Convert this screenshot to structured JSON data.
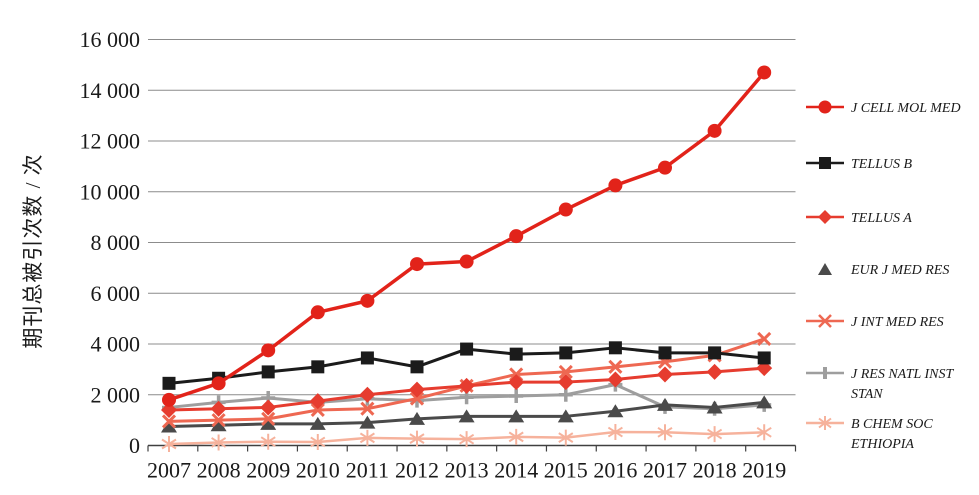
{
  "chart_data": {
    "type": "line",
    "title": "",
    "xlabel": "",
    "ylabel": "期刊总被引次数 / 次",
    "x": [
      "2007",
      "2008",
      "2009",
      "2010",
      "2011",
      "2012",
      "2013",
      "2014",
      "2015",
      "2016",
      "2017",
      "2018",
      "2019"
    ],
    "ylim": [
      0,
      16000
    ],
    "ytick_step": 2000,
    "ytick_labels": [
      "0",
      "2 000",
      "4 000",
      "6 000",
      "8 000",
      "10 000",
      "12 000",
      "14 000",
      "16 000"
    ],
    "grid": true,
    "legend_position": "right",
    "axis_color": "#404040",
    "grid_color": "#8c8c8c",
    "series": [
      {
        "name": "J CELL MOL MED",
        "marker": "circle",
        "color": "#e2231a",
        "line_width": 3.5,
        "values": [
          1800,
          2450,
          3750,
          5250,
          5700,
          7150,
          7250,
          8250,
          9300,
          10250,
          10950,
          12400,
          14700
        ]
      },
      {
        "name": "TELLUS B",
        "marker": "square",
        "color": "#1b1b1b",
        "line_width": 3,
        "values": [
          2450,
          2650,
          2900,
          3100,
          3450,
          3100,
          3800,
          3600,
          3650,
          3850,
          3650,
          3650,
          3450
        ]
      },
      {
        "name": "TELLUS A",
        "marker": "diamond",
        "color": "#e63c2f",
        "line_width": 3,
        "values": [
          1400,
          1450,
          1500,
          1750,
          2000,
          2200,
          2350,
          2500,
          2500,
          2600,
          2800,
          2900,
          3050
        ]
      },
      {
        "name": "EUR J MED RES",
        "marker": "triangle",
        "color": "#4a4a4a",
        "line_width": 3,
        "legend_line": false,
        "values": [
          750,
          800,
          850,
          850,
          900,
          1050,
          1150,
          1150,
          1150,
          1350,
          1600,
          1500,
          1700
        ]
      },
      {
        "name": "J INT MED RES",
        "marker": "x",
        "color": "#ee6852",
        "line_width": 3,
        "values": [
          950,
          1000,
          1050,
          1400,
          1450,
          1850,
          2350,
          2800,
          2900,
          3100,
          3300,
          3550,
          4200
        ]
      },
      {
        "name": "J RES NATL INST STAN",
        "marker": "plus",
        "color": "#9e9e9e",
        "line_width": 3,
        "values": [
          1500,
          1700,
          1870,
          1700,
          1840,
          1770,
          1900,
          1950,
          2000,
          2400,
          1520,
          1450,
          1600
        ]
      },
      {
        "name": "B CHEM SOC ETHIOPIA",
        "marker": "asterisk",
        "color": "#f6b29c",
        "line_width": 2.5,
        "values": [
          60,
          120,
          150,
          140,
          300,
          270,
          250,
          340,
          310,
          530,
          520,
          450,
          520
        ]
      }
    ]
  }
}
